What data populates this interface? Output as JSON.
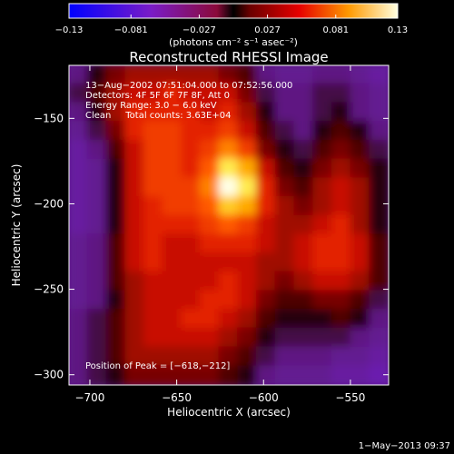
{
  "chart_data": {
    "type": "heatmap",
    "title": "Reconstructed RHESSI Image",
    "xlabel": "Heliocentric X (arcsec)",
    "ylabel": "Heliocentric Y (arcsec)",
    "xlim": [
      -712,
      -528
    ],
    "ylim": [
      -306,
      -119
    ],
    "x_ticks": [
      -700,
      -650,
      -600,
      -550
    ],
    "x_tick_labels": [
      "−700",
      "−650",
      "−600",
      "−550"
    ],
    "y_ticks": [
      -150,
      -200,
      -250,
      -300
    ],
    "y_tick_labels": [
      "−150",
      "−200",
      "−250",
      "−300"
    ],
    "colorbar": {
      "range": [
        -0.13,
        0.13
      ],
      "ticks": [
        -0.13,
        -0.081,
        -0.027,
        0.027,
        0.081,
        0.13
      ],
      "tick_labels": [
        "−0.13",
        "−0.081",
        "−0.027",
        "0.027",
        "0.081",
        "0.13"
      ],
      "unit_label": "(photons cm⁻² s⁻¹ asec⁻²)"
    },
    "info_lines": [
      "13−Aug−2002 07:51:04.000 to 07:52:56.000",
      "Detectors: 4F 5F 6F 7F 8F, Att 0",
      "Energy Range: 3.0 − 6.0 keV",
      "Clean     Total counts: 3.63E+04"
    ],
    "peak_label": "Position of Peak = [−618,−212]",
    "peak": {
      "x": -618,
      "y": -212,
      "value": 0.13
    },
    "image_grid": {
      "nx": 17,
      "ny": 17,
      "rows_top_to_bottom": [
        [
          -0.02,
          0.0,
          0.02,
          0.03,
          0.03,
          0.03,
          0.03,
          0.03,
          0.02,
          0.01,
          -0.02,
          -0.03,
          -0.03,
          -0.02,
          -0.02,
          -0.03,
          -0.04
        ],
        [
          -0.01,
          0.01,
          0.03,
          0.04,
          0.04,
          0.05,
          0.04,
          0.04,
          0.04,
          0.02,
          -0.01,
          -0.02,
          -0.02,
          -0.01,
          -0.01,
          -0.02,
          -0.03
        ],
        [
          -0.02,
          0.0,
          0.03,
          0.05,
          0.05,
          0.05,
          0.05,
          0.04,
          0.05,
          0.03,
          0.0,
          -0.02,
          -0.02,
          -0.01,
          0.0,
          -0.02,
          -0.03
        ],
        [
          -0.03,
          -0.01,
          0.02,
          0.05,
          0.06,
          0.06,
          0.05,
          0.05,
          0.06,
          0.04,
          0.01,
          -0.01,
          -0.02,
          0.0,
          0.01,
          0.0,
          -0.02
        ],
        [
          -0.04,
          -0.02,
          0.01,
          0.04,
          0.06,
          0.06,
          0.05,
          0.06,
          0.08,
          0.06,
          0.02,
          0.0,
          -0.01,
          0.01,
          0.02,
          0.01,
          -0.01
        ],
        [
          -0.04,
          -0.03,
          0.0,
          0.04,
          0.06,
          0.06,
          0.05,
          0.07,
          0.11,
          0.09,
          0.04,
          0.01,
          0.0,
          0.02,
          0.03,
          0.02,
          0.0
        ],
        [
          -0.04,
          -0.03,
          0.0,
          0.04,
          0.06,
          0.06,
          0.06,
          0.08,
          0.13,
          0.11,
          0.05,
          0.02,
          0.01,
          0.03,
          0.04,
          0.03,
          0.0
        ],
        [
          -0.04,
          -0.03,
          0.0,
          0.04,
          0.05,
          0.06,
          0.06,
          0.07,
          0.1,
          0.09,
          0.05,
          0.03,
          0.02,
          0.03,
          0.04,
          0.03,
          0.0
        ],
        [
          -0.04,
          -0.03,
          0.0,
          0.04,
          0.05,
          0.05,
          0.05,
          0.06,
          0.07,
          0.06,
          0.04,
          0.03,
          0.03,
          0.04,
          0.05,
          0.03,
          0.0
        ],
        [
          -0.03,
          -0.02,
          0.01,
          0.04,
          0.05,
          0.04,
          0.04,
          0.05,
          0.05,
          0.05,
          0.04,
          0.03,
          0.04,
          0.05,
          0.05,
          0.04,
          0.01
        ],
        [
          -0.03,
          -0.02,
          0.01,
          0.04,
          0.05,
          0.04,
          0.04,
          0.04,
          0.04,
          0.04,
          0.03,
          0.03,
          0.04,
          0.05,
          0.05,
          0.04,
          0.01
        ],
        [
          -0.03,
          -0.02,
          0.01,
          0.03,
          0.04,
          0.04,
          0.04,
          0.04,
          0.05,
          0.04,
          0.03,
          0.02,
          0.03,
          0.04,
          0.04,
          0.03,
          0.01
        ],
        [
          -0.03,
          -0.02,
          0.0,
          0.03,
          0.04,
          0.04,
          0.04,
          0.05,
          0.05,
          0.04,
          0.02,
          0.01,
          0.01,
          0.02,
          0.02,
          0.01,
          -0.01
        ],
        [
          -0.02,
          -0.01,
          0.01,
          0.03,
          0.04,
          0.04,
          0.05,
          0.05,
          0.04,
          0.03,
          0.01,
          0.0,
          0.0,
          0.0,
          0.01,
          0.0,
          -0.02
        ],
        [
          -0.02,
          -0.01,
          0.01,
          0.03,
          0.04,
          0.04,
          0.04,
          0.04,
          0.03,
          0.02,
          0.0,
          -0.01,
          -0.01,
          -0.01,
          -0.01,
          -0.02,
          -0.03
        ],
        [
          -0.02,
          -0.01,
          0.01,
          0.03,
          0.03,
          0.03,
          0.03,
          0.03,
          0.02,
          0.01,
          -0.01,
          -0.02,
          -0.02,
          -0.02,
          -0.03,
          -0.03,
          -0.04
        ],
        [
          -0.02,
          -0.01,
          0.0,
          0.02,
          0.02,
          0.02,
          0.02,
          0.02,
          0.01,
          0.0,
          -0.02,
          -0.03,
          -0.03,
          -0.03,
          -0.04,
          -0.04,
          -0.05
        ]
      ]
    }
  },
  "footer_timestamp": "1−May−2013 09:37"
}
